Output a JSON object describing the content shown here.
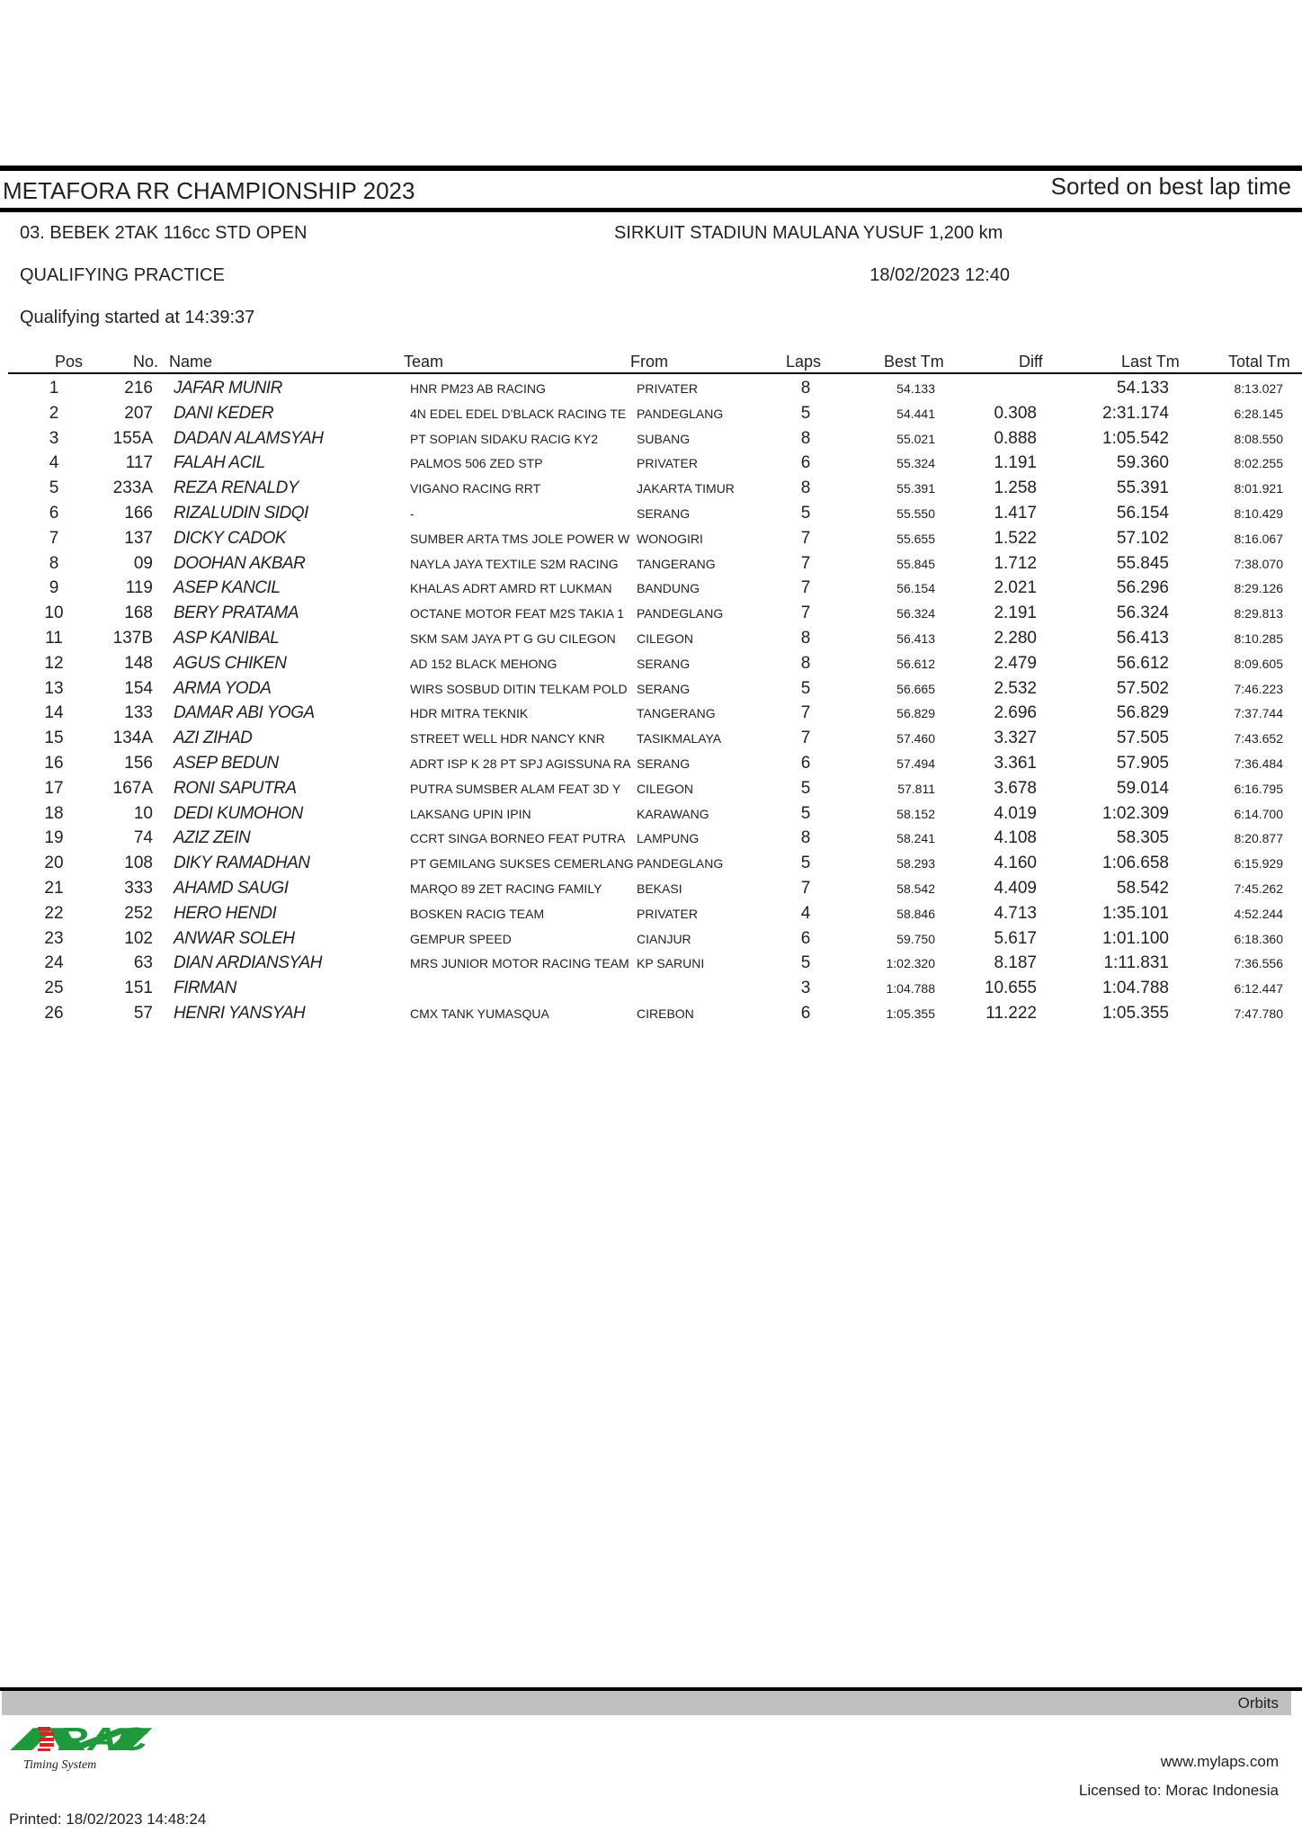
{
  "header": {
    "title": "METAFORA RR CHAMPIONSHIP 2023",
    "sort_note": "Sorted on best lap time",
    "class_name": "03. BEBEK 2TAK 116cc STD OPEN",
    "circuit": "SIRKUIT STADIUN MAULANA YUSUF 1,200 km",
    "session": "QUALIFYING PRACTICE",
    "datetime": "18/02/2023 12:40",
    "started": "Qualifying started at 14:39:37"
  },
  "columns": {
    "pos": "Pos",
    "no": "No.",
    "name": "Name",
    "team": "Team",
    "from": "From",
    "laps": "Laps",
    "best": "Best Tm",
    "diff": "Diff",
    "last": "Last Tm",
    "total": "Total Tm"
  },
  "rows": [
    [
      "1",
      "216",
      "JAFAR MUNIR",
      "HNR PM23 AB RACING",
      "PRIVATER",
      "8",
      "54.133",
      "",
      "54.133",
      "8:13.027"
    ],
    [
      "2",
      "207",
      "DANI KEDER",
      "4N EDEL EDEL D'BLACK RACING TE",
      "PANDEGLANG",
      "5",
      "54.441",
      "0.308",
      "2:31.174",
      "6:28.145"
    ],
    [
      "3",
      "155A",
      "DADAN ALAMSYAH",
      "PT SOPIAN SIDAKU RACIG KY2",
      "SUBANG",
      "8",
      "55.021",
      "0.888",
      "1:05.542",
      "8:08.550"
    ],
    [
      "4",
      "117",
      "FALAH ACIL",
      "PALMOS 506 ZED STP",
      "PRIVATER",
      "6",
      "55.324",
      "1.191",
      "59.360",
      "8:02.255"
    ],
    [
      "5",
      "233A",
      "REZA RENALDY",
      "VIGANO RACING RRT",
      "JAKARTA TIMUR",
      "8",
      "55.391",
      "1.258",
      "55.391",
      "8:01.921"
    ],
    [
      "6",
      "166",
      "RIZALUDIN SIDQI",
      "-",
      "SERANG",
      "5",
      "55.550",
      "1.417",
      "56.154",
      "8:10.429"
    ],
    [
      "7",
      "137",
      "DICKY CADOK",
      "SUMBER ARTA TMS JOLE POWER W",
      "WONOGIRI",
      "7",
      "55.655",
      "1.522",
      "57.102",
      "8:16.067"
    ],
    [
      "8",
      "09",
      "DOOHAN AKBAR",
      "NAYLA JAYA TEXTILE S2M RACING",
      "TANGERANG",
      "7",
      "55.845",
      "1.712",
      "55.845",
      "7:38.070"
    ],
    [
      "9",
      "119",
      "ASEP KANCIL",
      "KHALAS ADRT AMRD RT LUKMAN",
      "BANDUNG",
      "7",
      "56.154",
      "2.021",
      "56.296",
      "8:29.126"
    ],
    [
      "10",
      "168",
      "BERY PRATAMA",
      "OCTANE MOTOR FEAT M2S TAKIA 1",
      "PANDEGLANG",
      "7",
      "56.324",
      "2.191",
      "56.324",
      "8:29.813"
    ],
    [
      "11",
      "137B",
      "ASP KANIBAL",
      "SKM SAM JAYA PT G GU CILEGON",
      "CILEGON",
      "8",
      "56.413",
      "2.280",
      "56.413",
      "8:10.285"
    ],
    [
      "12",
      "148",
      "AGUS CHIKEN",
      "AD 152 BLACK MEHONG",
      "SERANG",
      "8",
      "56.612",
      "2.479",
      "56.612",
      "8:09.605"
    ],
    [
      "13",
      "154",
      "ARMA YODA",
      "WIRS SOSBUD DITIN TELKAM POLD",
      "SERANG",
      "5",
      "56.665",
      "2.532",
      "57.502",
      "7:46.223"
    ],
    [
      "14",
      "133",
      "DAMAR ABI YOGA",
      "HDR MITRA TEKNIK",
      "TANGERANG",
      "7",
      "56.829",
      "2.696",
      "56.829",
      "7:37.744"
    ],
    [
      "15",
      "134A",
      "AZI ZIHAD",
      "STREET WELL HDR NANCY KNR",
      "TASIKMALAYA",
      "7",
      "57.460",
      "3.327",
      "57.505",
      "7:43.652"
    ],
    [
      "16",
      "156",
      "ASEP BEDUN",
      "ADRT ISP K 28 PT SPJ AGISSUNA RA",
      "SERANG",
      "6",
      "57.494",
      "3.361",
      "57.905",
      "7:36.484"
    ],
    [
      "17",
      "167A",
      "RONI SAPUTRA",
      "PUTRA SUMSBER ALAM FEAT 3D Y",
      "CILEGON",
      "5",
      "57.811",
      "3.678",
      "59.014",
      "6:16.795"
    ],
    [
      "18",
      "10",
      "DEDI KUMOHON",
      "LAKSANG UPIN IPIN",
      "KARAWANG",
      "5",
      "58.152",
      "4.019",
      "1:02.309",
      "6:14.700"
    ],
    [
      "19",
      "74",
      "AZIZ ZEIN",
      "CCRT SINGA BORNEO FEAT PUTRA",
      "LAMPUNG",
      "8",
      "58.241",
      "4.108",
      "58.305",
      "8:20.877"
    ],
    [
      "20",
      "108",
      "DIKY RAMADHAN",
      "PT GEMILANG SUKSES CEMERLANG",
      "PANDEGLANG",
      "5",
      "58.293",
      "4.160",
      "1:06.658",
      "6:15.929"
    ],
    [
      "21",
      "333",
      "AHAMD SAUGI",
      "MARQO 89 ZET RACING FAMILY",
      "BEKASI",
      "7",
      "58.542",
      "4.409",
      "58.542",
      "7:45.262"
    ],
    [
      "22",
      "252",
      "HERO HENDI",
      "BOSKEN RACIG TEAM",
      "PRIVATER",
      "4",
      "58.846",
      "4.713",
      "1:35.101",
      "4:52.244"
    ],
    [
      "23",
      "102",
      "ANWAR SOLEH",
      "GEMPUR SPEED",
      "CIANJUR",
      "6",
      "59.750",
      "5.617",
      "1:01.100",
      "6:18.360"
    ],
    [
      "24",
      "63",
      "DIAN ARDIANSYAH",
      "MRS JUNIOR MOTOR RACING TEAM",
      "KP SARUNI",
      "5",
      "1:02.320",
      "8.187",
      "1:11.831",
      "7:36.556"
    ],
    [
      "25",
      "151",
      "FIRMAN",
      "",
      "",
      "3",
      "1:04.788",
      "10.655",
      "1:04.788",
      "6:12.447"
    ],
    [
      "26",
      "57",
      "HENRI YANSYAH",
      "CMX TANK YUMASQUA",
      "CIREBON",
      "6",
      "1:05.355",
      "11.222",
      "1:05.355",
      "7:47.780"
    ]
  ],
  "footer": {
    "bar_label": "Orbits",
    "logo_text": "MORAC",
    "logo_sub": "Timing System",
    "website": "www.mylaps.com",
    "licensed": "Licensed to:  Morac Indonesia",
    "printed": "Printed: 18/02/2023 14:48:24",
    "logo_green": "#1e9a3c",
    "logo_red": "#e02020",
    "bar_color": "#c0c0c0"
  }
}
